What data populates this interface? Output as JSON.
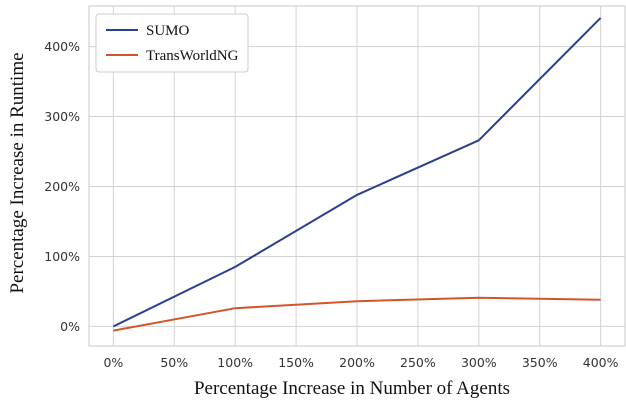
{
  "chart_data": {
    "type": "line",
    "title": "",
    "xlabel": "Percentage Increase in Number of Agents",
    "ylabel": "Percentage Increase in Runtime",
    "x": [
      0,
      100,
      200,
      300,
      400
    ],
    "xticks": [
      0,
      50,
      100,
      150,
      200,
      250,
      300,
      350,
      400
    ],
    "xtick_labels": [
      "0%",
      "50%",
      "100%",
      "150%",
      "200%",
      "250%",
      "300%",
      "350%",
      "400%"
    ],
    "yticks": [
      0,
      100,
      200,
      300,
      400
    ],
    "ytick_labels": [
      "0%",
      "100%",
      "200%",
      "300%",
      "400%"
    ],
    "xlim": [
      -20,
      420
    ],
    "ylim": [
      -28,
      458
    ],
    "grid": true,
    "legend_position": "top-left",
    "series": [
      {
        "name": "SUMO",
        "color": "#2b3f8f",
        "values": [
          0,
          85,
          188,
          266,
          441
        ]
      },
      {
        "name": "TransWorldNG",
        "color": "#d2562a",
        "values": [
          -6,
          26,
          36,
          41,
          38
        ]
      }
    ]
  }
}
